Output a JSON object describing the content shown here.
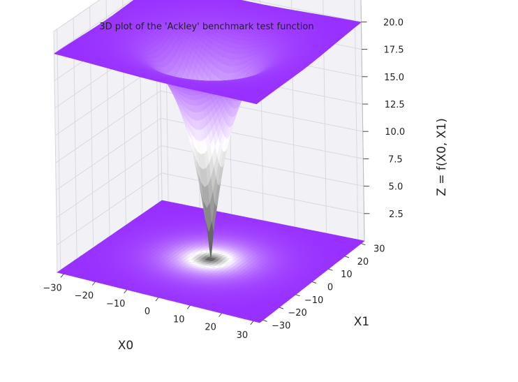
{
  "chart_data": {
    "type": "surface3d",
    "title": "3D plot of the 'Ackley' benchmark test function",
    "xlabel": "X0",
    "ylabel": "X1",
    "zlabel": "Z = f(X0, X1)",
    "x_ticks": [
      "−30",
      "−20",
      "−10",
      "0",
      "10",
      "20",
      "30"
    ],
    "y_ticks": [
      "−30",
      "−20",
      "−10",
      "0",
      "10",
      "20",
      "30"
    ],
    "z_ticks": [
      "2.5",
      "5.0",
      "7.5",
      "10.0",
      "12.5",
      "15.0",
      "17.5",
      "20.0"
    ],
    "x_range": [
      -32,
      32
    ],
    "y_range": [
      -32,
      32
    ],
    "z_range": [
      0,
      22
    ],
    "surface_function": "ackley",
    "surface_min": 0,
    "surface_max": 22,
    "contour_projection": "bottom",
    "colormap": [
      "#404040",
      "#ffffff",
      "#8000ff"
    ],
    "grid": true
  }
}
